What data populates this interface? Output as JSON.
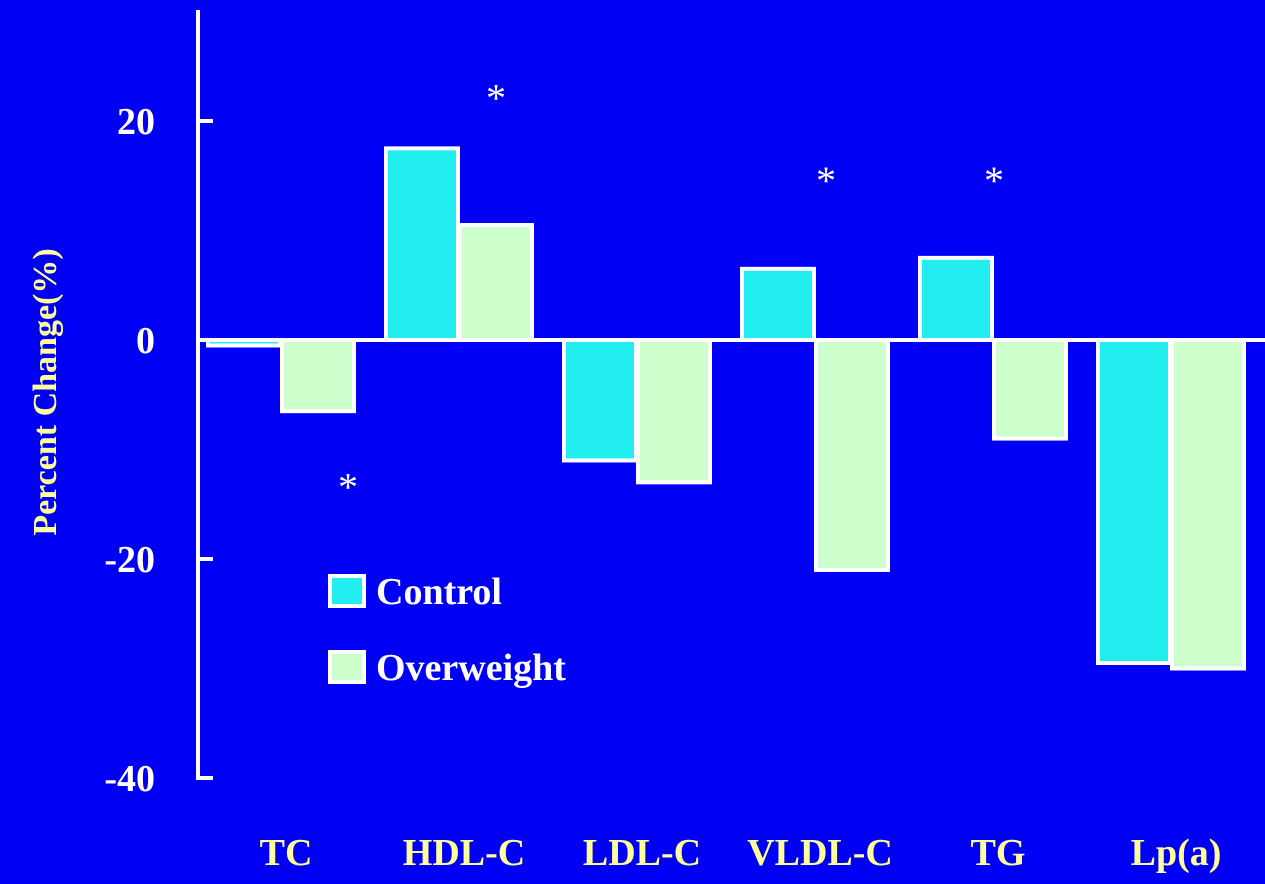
{
  "chart_data": {
    "type": "bar",
    "title": "",
    "xlabel": "",
    "ylabel": "Percent Change(%)",
    "ylim": [
      -40,
      30
    ],
    "yticks": [
      20,
      0,
      -20,
      -40
    ],
    "categories": [
      "TC",
      "HDL-C",
      "LDL-C",
      "VLDL-C",
      "TG",
      "Lp(a)"
    ],
    "series": [
      {
        "name": "Control",
        "color": "#22eef0",
        "values": [
          -0.5,
          17.5,
          -11,
          6.5,
          7.5,
          -29.5
        ]
      },
      {
        "name": "Overweight",
        "color": "#ccffcc",
        "values": [
          -6.5,
          10.5,
          -13,
          -21,
          -9,
          -30
        ]
      }
    ],
    "annotations": [
      {
        "text": "*",
        "category": "TC",
        "value": -13
      },
      {
        "text": "*",
        "category": "HDL-C",
        "value": 22.5
      },
      {
        "text": "*",
        "category": "VLDL-C",
        "value": 15
      },
      {
        "text": "*",
        "category": "TG",
        "value": 15
      }
    ],
    "legend": {
      "position": "lower-left",
      "items": [
        "Control",
        "Overweight"
      ]
    },
    "grid": false,
    "colors": {
      "background": "#0000f5",
      "axis": "#ffffff",
      "tick_labels": "#ffffff",
      "category_labels": "#ffff99",
      "ylabel": "#ffff99",
      "bar_edge": "#ffffff"
    }
  }
}
